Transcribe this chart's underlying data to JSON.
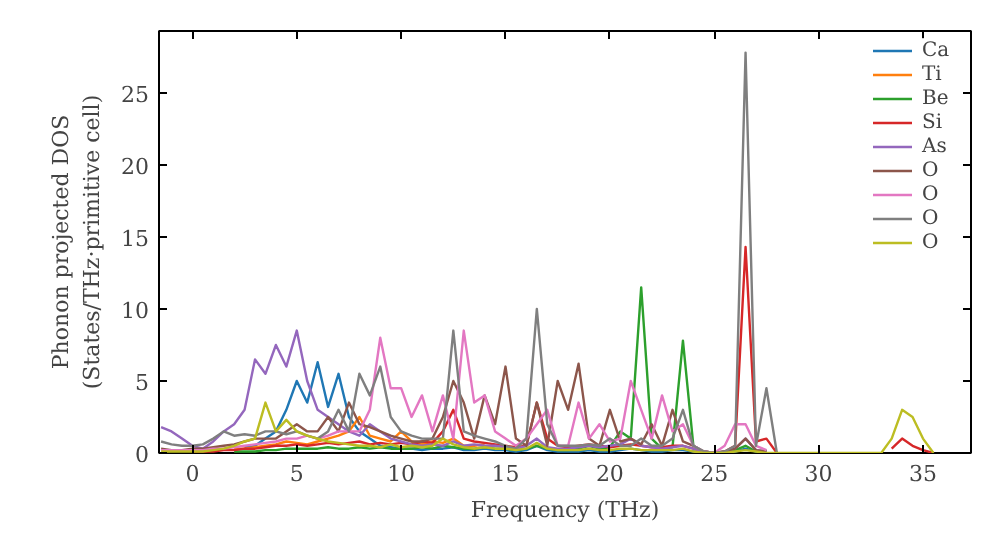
{
  "chart_data": {
    "type": "line",
    "xlabel": "Frequency (THz)",
    "ylabel": "Phonon projected DOS\n(States/THz·primitive cell)",
    "x": [
      -1.5,
      -1,
      -0.5,
      0,
      0.5,
      1,
      1.5,
      2,
      2.5,
      3,
      3.5,
      4,
      4.5,
      5,
      5.5,
      6,
      6.5,
      7,
      7.5,
      8,
      8.5,
      9,
      9.5,
      10,
      10.5,
      11,
      11.5,
      12,
      12.5,
      13,
      13.5,
      14,
      14.5,
      15,
      15.5,
      16,
      16.5,
      17,
      17.5,
      18,
      18.5,
      19,
      19.5,
      20,
      20.5,
      21,
      21.5,
      22,
      22.5,
      23,
      23.5,
      24,
      24.5,
      25,
      25.5,
      26,
      26.5,
      27,
      27.5,
      28,
      28.5,
      29,
      29.5,
      30,
      30.5,
      31,
      31.5,
      32,
      32.5,
      33,
      33.5,
      34,
      34.5,
      35,
      35.5
    ],
    "series": [
      {
        "name": "Ca",
        "color": "#1f77b4",
        "values": [
          null,
          null,
          null,
          null,
          null,
          null,
          null,
          null,
          0.4,
          0.5,
          1,
          1.5,
          3,
          5,
          3.5,
          6.3,
          3.2,
          5.5,
          2.5,
          1.5,
          1,
          0.5,
          0.4,
          0.3,
          0.3,
          0.2,
          0.3,
          0.3,
          0.4,
          0.2,
          0.2,
          0.3,
          0.2,
          0.2,
          0.1,
          0.2,
          0.5,
          0.2,
          0.1,
          0.1,
          0.1,
          0.2,
          0.1,
          0.1,
          0.2,
          0.3,
          0.2,
          0.1,
          0.1,
          0.2,
          0.2,
          0.1,
          0,
          0,
          0,
          0.1,
          0.3,
          0.1,
          0.1,
          null,
          null,
          null,
          null,
          null,
          null,
          null,
          null,
          null,
          null,
          null,
          null,
          null,
          null,
          null,
          null
        ]
      },
      {
        "name": "Ti",
        "color": "#ff7f0e",
        "values": [
          null,
          null,
          null,
          null,
          null,
          null,
          null,
          0.3,
          0.3,
          0.4,
          0.5,
          0.6,
          0.8,
          0.7,
          0.6,
          0.8,
          1,
          1.2,
          1.5,
          2.5,
          1.2,
          1,
          0.8,
          1.5,
          0.8,
          0.6,
          0.8,
          0.7,
          1,
          0.5,
          0.5,
          0.6,
          null,
          null,
          null,
          null,
          null,
          null,
          null,
          null,
          null,
          null,
          null,
          null,
          null,
          null,
          null,
          null,
          null,
          null,
          null,
          null,
          null,
          null,
          null,
          null,
          null,
          null,
          null,
          null,
          null,
          null,
          null,
          null,
          null,
          null,
          null,
          null,
          null,
          null,
          null,
          null,
          null,
          null,
          null
        ]
      },
      {
        "name": "Be",
        "color": "#2ca02c",
        "values": [
          null,
          null,
          null,
          null,
          null,
          null,
          null,
          0.1,
          0.1,
          0.1,
          0.2,
          0.2,
          0.3,
          0.3,
          0.3,
          0.3,
          0.4,
          0.3,
          0.3,
          0.4,
          0.3,
          0.4,
          0.3,
          0.3,
          0.3,
          0.4,
          0.3,
          0.5,
          0.4,
          0.3,
          0.3,
          0.4,
          0.3,
          0.3,
          0.2,
          0.3,
          0.5,
          0.3,
          0.2,
          0.2,
          0.3,
          0.5,
          0.3,
          0.4,
          1.5,
          1,
          11.5,
          1,
          0.3,
          0.4,
          7.8,
          0.5,
          0.1,
          0,
          0,
          0.2,
          0.5,
          0.1,
          0.2,
          null,
          null,
          null,
          null,
          null,
          null,
          null,
          null,
          null,
          null,
          null,
          null,
          null,
          null,
          null,
          null
        ]
      },
      {
        "name": "Si",
        "color": "#d62728",
        "values": [
          null,
          null,
          null,
          0.1,
          0.1,
          0.1,
          0.2,
          0.2,
          0.3,
          0.3,
          0.4,
          0.5,
          0.5,
          0.6,
          0.5,
          0.6,
          0.7,
          0.6,
          0.7,
          0.8,
          0.6,
          0.7,
          0.6,
          0.7,
          0.6,
          0.8,
          0.7,
          1.5,
          3,
          1,
          0.8,
          0.7,
          0.6,
          0.5,
          0.4,
          0.5,
          3.5,
          1,
          0.5,
          0.4,
          0.5,
          0.6,
          0.5,
          0.4,
          0.5,
          0.6,
          0.5,
          0.4,
          0.4,
          0.5,
          0.5,
          0.3,
          0.1,
          0,
          0.1,
          0.5,
          14.3,
          0.8,
          1,
          0,
          null,
          null,
          null,
          null,
          null,
          null,
          null,
          null,
          null,
          null,
          0.3,
          1,
          0.5,
          0.2,
          0
        ]
      },
      {
        "name": "As",
        "color": "#9467bd",
        "values": [
          1.8,
          1.5,
          1,
          0.5,
          0.3,
          0.8,
          1.5,
          2,
          3,
          6.5,
          5.5,
          7.5,
          6,
          8.5,
          5,
          3,
          2.5,
          2,
          1.5,
          1.2,
          2,
          1.5,
          1,
          0.8,
          0.6,
          0.5,
          0.6,
          0.5,
          0.8,
          0.5,
          0.6,
          0.5,
          0.5,
          0.4,
          0.3,
          0.5,
          1,
          0.4,
          0.3,
          0.3,
          0.4,
          0.5,
          0.4,
          0.5,
          0.6,
          1,
          0.5,
          0.4,
          0.3,
          0.4,
          0.5,
          0.3,
          0.1,
          0,
          0.1,
          0.3,
          1,
          0.2,
          0.1,
          null,
          null,
          null,
          null,
          null,
          null,
          null,
          null,
          null,
          null,
          null,
          null,
          null,
          null,
          null,
          null
        ]
      },
      {
        "name": "O",
        "color": "#8c564b",
        "values": [
          0.3,
          0.2,
          0.2,
          0.3,
          0.3,
          0.4,
          0.5,
          0.6,
          0.8,
          1,
          1,
          1,
          1.5,
          2,
          1.5,
          1.5,
          2.5,
          1.5,
          3.5,
          2,
          1.8,
          1.5,
          1.2,
          1,
          0.8,
          0.8,
          1,
          2.5,
          5,
          3.5,
          1,
          4,
          2,
          6,
          1,
          0.5,
          3.5,
          0.5,
          5,
          3,
          6.2,
          1,
          0.5,
          3,
          0.8,
          1,
          0.6,
          2,
          0.5,
          3,
          0.8,
          0.5,
          0.1,
          0,
          0.1,
          0.3,
          1,
          0.2,
          0.1,
          null,
          null,
          null,
          null,
          null,
          null,
          null,
          null,
          null,
          null,
          null,
          null,
          null,
          null,
          null,
          null
        ]
      },
      {
        "name": "O",
        "color": "#e377c2",
        "values": [
          0.2,
          0.2,
          0.2,
          0.2,
          0.2,
          0.3,
          0.3,
          0.4,
          0.5,
          0.6,
          0.7,
          0.8,
          1,
          1,
          1.2,
          1,
          1.2,
          1.5,
          1.5,
          1.5,
          3,
          8,
          4.5,
          4.5,
          2.5,
          4,
          1.5,
          4,
          1,
          8.5,
          3.5,
          4,
          1.5,
          1,
          0.5,
          1,
          2,
          3,
          0.5,
          0.5,
          3.5,
          1,
          2,
          0.8,
          1,
          5,
          3,
          1,
          4,
          1.5,
          2,
          0.5,
          0.1,
          0,
          0.5,
          2,
          2,
          0.5,
          0.2,
          null,
          null,
          null,
          null,
          null,
          null,
          null,
          null,
          null,
          null,
          null,
          null,
          null,
          null,
          null,
          null
        ]
      },
      {
        "name": "O",
        "color": "#7f7f7f",
        "values": [
          0.8,
          0.6,
          0.5,
          0.5,
          0.6,
          1,
          1.5,
          1.2,
          1.3,
          1.2,
          1.5,
          1.5,
          1.3,
          1.5,
          1.2,
          1,
          1.5,
          3,
          1.5,
          5.5,
          4,
          6,
          2.5,
          1.5,
          1.2,
          1,
          1,
          1,
          8.5,
          1.5,
          1.2,
          1,
          0.8,
          0.5,
          0.3,
          1,
          10,
          2,
          0.5,
          0.5,
          0.5,
          0.6,
          0.5,
          1,
          0.5,
          0.5,
          1,
          0.5,
          0.5,
          1,
          3,
          0.5,
          0.1,
          0,
          0.1,
          0.5,
          27.8,
          0.5,
          4.5,
          0,
          null,
          null,
          null,
          null,
          null,
          null,
          null,
          null,
          null,
          null,
          null,
          null,
          null,
          null,
          null
        ]
      },
      {
        "name": "O",
        "color": "#bcbd22",
        "values": [
          0.1,
          0.1,
          0.1,
          0.1,
          0.1,
          0.2,
          0.3,
          0.5,
          0.8,
          1,
          3.5,
          1.5,
          2.3,
          1.5,
          1.2,
          1,
          0.8,
          0.7,
          0.6,
          0.5,
          0.5,
          0.4,
          0.6,
          0.4,
          0.5,
          0.4,
          0.5,
          1,
          0.6,
          0.4,
          0.3,
          0.4,
          0.3,
          0.3,
          0.2,
          0.3,
          0.7,
          0.3,
          0.2,
          0.2,
          0.2,
          0.3,
          0.2,
          0.2,
          0.3,
          0.3,
          0.2,
          0.2,
          0.2,
          0.2,
          0.3,
          0.1,
          0,
          0,
          0,
          0.1,
          0.2,
          0.1,
          0,
          0,
          0,
          0,
          0,
          0,
          0,
          0,
          0,
          0,
          0,
          0,
          1,
          3,
          2.5,
          1,
          0
        ]
      }
    ],
    "xlim": [
      -1.6,
      37.3
    ],
    "ylim": [
      0,
      29.3
    ],
    "xticks": [
      0,
      5,
      10,
      15,
      20,
      25,
      30,
      35
    ],
    "yticks": [
      0,
      5,
      10,
      15,
      20,
      25
    ],
    "legend": "top right",
    "grid": false
  }
}
